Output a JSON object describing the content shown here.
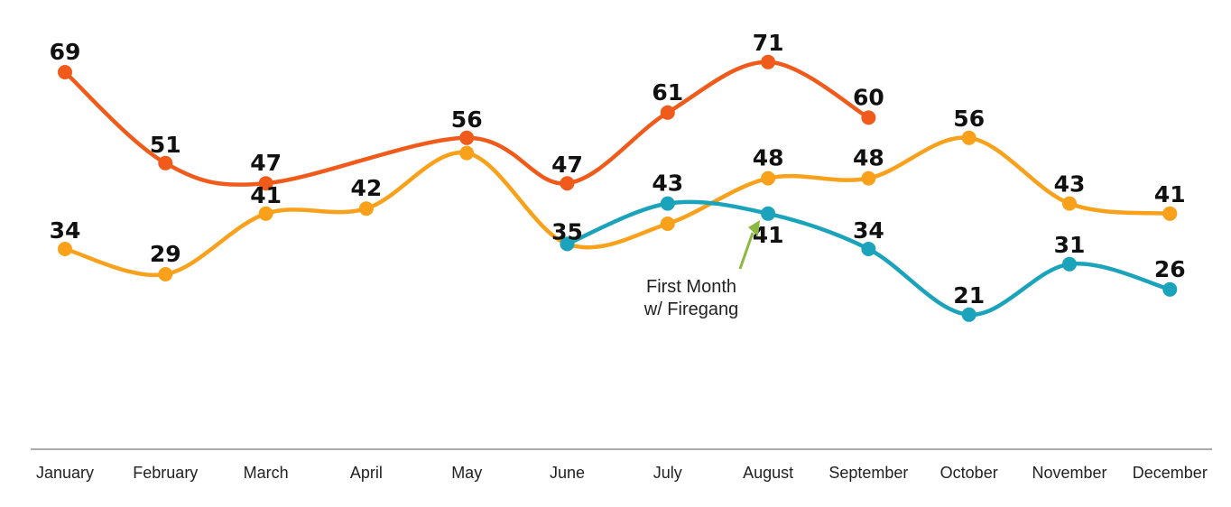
{
  "chart_data": {
    "type": "line",
    "categories": [
      "January",
      "February",
      "March",
      "April",
      "May",
      "June",
      "July",
      "August",
      "September",
      "October",
      "November",
      "December"
    ],
    "series": [
      {
        "color": "#f05a1a",
        "values": [
          69,
          51,
          47,
          null,
          56,
          47,
          61,
          71,
          60,
          null,
          null,
          null
        ],
        "labels": [
          "69",
          "51",
          "47",
          null,
          "56",
          "47",
          "61",
          "71",
          "60",
          null,
          null,
          null
        ]
      },
      {
        "color": "#f9a11b",
        "values": [
          34,
          29,
          41,
          42,
          53,
          35,
          39,
          48,
          48,
          56,
          43,
          41
        ],
        "labels": [
          "34",
          "29",
          "41",
          "42",
          null,
          null,
          null,
          "48",
          "48",
          "56",
          "43",
          "41"
        ]
      },
      {
        "color": "#1aa3bb",
        "values": [
          null,
          null,
          null,
          null,
          null,
          35,
          43,
          41,
          34,
          21,
          31,
          26
        ],
        "labels": [
          null,
          null,
          null,
          null,
          null,
          "35",
          "43",
          "41",
          "34",
          "21",
          "31",
          "26"
        ]
      }
    ],
    "annotation": {
      "lines": [
        "First Month",
        "w/ Firegang"
      ],
      "arrow_color": "#8db840",
      "category": "August"
    },
    "axis_color": "#aaaaaa",
    "grid": false,
    "legend": "none"
  }
}
